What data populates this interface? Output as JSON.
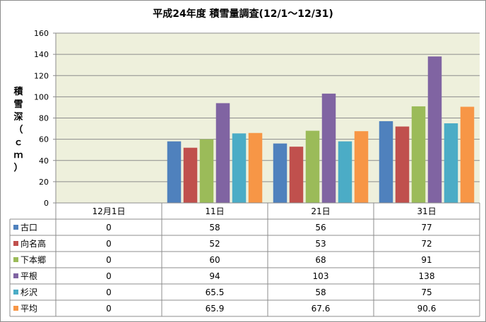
{
  "chart_data": {
    "type": "bar",
    "title": "平成24年度 積雪量調査(12/1～12/31)",
    "ylabel": "積雪深（ｃｍ）",
    "ylim": [
      0,
      160
    ],
    "yticks": [
      "0",
      "20",
      "40",
      "60",
      "80",
      "100",
      "120",
      "140",
      "160"
    ],
    "grid": true,
    "legend": "table-left",
    "categories": [
      "12月1日",
      "11日",
      "21日",
      "31日"
    ],
    "series": [
      {
        "name": "古口",
        "color": "#4f81bd",
        "values": [
          0,
          58,
          56,
          77
        ],
        "labels": [
          "0",
          "58",
          "56",
          "77"
        ]
      },
      {
        "name": "向名高",
        "color": "#c0504d",
        "values": [
          0,
          52,
          53,
          72
        ],
        "labels": [
          "0",
          "52",
          "53",
          "72"
        ]
      },
      {
        "name": "下本郷",
        "color": "#9bbb59",
        "values": [
          0,
          60,
          68,
          91
        ],
        "labels": [
          "0",
          "60",
          "68",
          "91"
        ]
      },
      {
        "name": "平根",
        "color": "#8064a2",
        "values": [
          0,
          94,
          103,
          138
        ],
        "labels": [
          "0",
          "94",
          "103",
          "138"
        ]
      },
      {
        "name": "杉沢",
        "color": "#4bacc6",
        "values": [
          0,
          65.5,
          58,
          75
        ],
        "labels": [
          "0",
          "65.5",
          "58",
          "75"
        ]
      },
      {
        "name": "平均",
        "color": "#f79646",
        "values": [
          0,
          65.9,
          67.6,
          90.6
        ],
        "labels": [
          "0",
          "65.9",
          "67.6",
          "90.6"
        ]
      }
    ]
  }
}
